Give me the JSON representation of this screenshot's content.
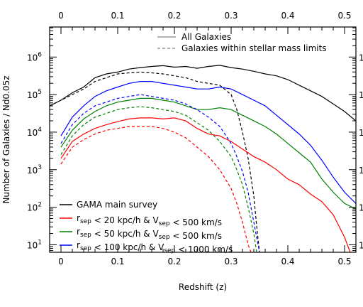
{
  "chart_data": {
    "type": "line",
    "title": "",
    "xlabel": "Redshift (z)",
    "ylabel": "Number of Galaxies / Nd0.05z",
    "xlim": [
      -0.02,
      0.52
    ],
    "ylim_log10": [
      0.8,
      6.8
    ],
    "y_scale": "log",
    "x_ticks": [
      {
        "v": 0,
        "label": "0"
      },
      {
        "v": 0.1,
        "label": "0.1"
      },
      {
        "v": 0.2,
        "label": "0.2"
      },
      {
        "v": 0.3,
        "label": "0.3"
      },
      {
        "v": 0.4,
        "label": "0.4"
      },
      {
        "v": 0.5,
        "label": "0.5"
      }
    ],
    "y_ticks": [
      {
        "exp": 1,
        "label_base": "10",
        "label_exp": "1"
      },
      {
        "exp": 2,
        "label_base": "10",
        "label_exp": "2"
      },
      {
        "exp": 3,
        "label_base": "10",
        "label_exp": "3"
      },
      {
        "exp": 4,
        "label_base": "10",
        "label_exp": "4"
      },
      {
        "exp": 5,
        "label_base": "10",
        "label_exp": "5"
      },
      {
        "exp": 6,
        "label_base": "10",
        "label_exp": "6"
      }
    ],
    "style_legend": [
      {
        "label": "All Galaxies",
        "dash": "solid"
      },
      {
        "label": "Galaxies within stellar mass limits",
        "dash": "dashed"
      }
    ],
    "series": [
      {
        "name": "GAMA main survey",
        "legend_parts": [
          {
            "t": "GAMA main survey"
          }
        ],
        "color": "#000000",
        "style": "solid",
        "x": [
          -0.02,
          0.0,
          0.02,
          0.04,
          0.06,
          0.08,
          0.1,
          0.12,
          0.14,
          0.16,
          0.18,
          0.2,
          0.22,
          0.24,
          0.26,
          0.28,
          0.3,
          0.32,
          0.34,
          0.36,
          0.38,
          0.4,
          0.42,
          0.44,
          0.46,
          0.48,
          0.5,
          0.52
        ],
        "log10_y": [
          4.7,
          4.85,
          5.05,
          5.2,
          5.45,
          5.55,
          5.6,
          5.68,
          5.72,
          5.75,
          5.77,
          5.73,
          5.75,
          5.7,
          5.75,
          5.78,
          5.72,
          5.68,
          5.62,
          5.55,
          5.5,
          5.4,
          5.25,
          5.1,
          4.95,
          4.75,
          4.55,
          4.3
        ]
      },
      {
        "name": "GAMA main survey",
        "legend_parts": [],
        "color": "#000000",
        "style": "dashed",
        "x": [
          -0.02,
          0.0,
          0.02,
          0.04,
          0.06,
          0.08,
          0.1,
          0.12,
          0.14,
          0.16,
          0.18,
          0.2,
          0.22,
          0.24,
          0.26,
          0.28,
          0.3,
          0.31,
          0.32,
          0.33,
          0.34,
          0.345,
          0.35
        ],
        "log10_y": [
          4.7,
          4.85,
          5.0,
          5.15,
          5.35,
          5.45,
          5.55,
          5.58,
          5.6,
          5.58,
          5.55,
          5.5,
          5.45,
          5.35,
          5.3,
          5.25,
          5.0,
          4.6,
          4.0,
          3.3,
          2.3,
          1.5,
          0.8
        ]
      },
      {
        "name": "r_sep < 20 kpc/h & V_sep < 500 km/s",
        "legend_parts": [
          {
            "t": "r"
          },
          {
            "t": "sep",
            "sub": true
          },
          {
            "t": " < 20 kpc/h & V"
          },
          {
            "t": "sep",
            "sub": true
          },
          {
            "t": " < 500 km/s"
          }
        ],
        "color": "#ff0000",
        "style": "solid",
        "x": [
          0.0,
          0.02,
          0.04,
          0.06,
          0.08,
          0.1,
          0.12,
          0.14,
          0.16,
          0.18,
          0.2,
          0.22,
          0.24,
          0.26,
          0.28,
          0.3,
          0.32,
          0.34,
          0.36,
          0.38,
          0.4,
          0.42,
          0.44,
          0.46,
          0.48,
          0.5,
          0.51
        ],
        "log10_y": [
          3.3,
          3.75,
          3.95,
          4.1,
          4.2,
          4.28,
          4.35,
          4.38,
          4.38,
          4.35,
          4.38,
          4.3,
          4.1,
          3.95,
          3.9,
          3.75,
          3.55,
          3.35,
          3.2,
          3.0,
          2.75,
          2.6,
          2.35,
          2.15,
          1.8,
          1.2,
          0.8
        ]
      },
      {
        "name": "r_sep < 20 kpc/h & V_sep < 500 km/s",
        "legend_parts": [],
        "color": "#ff0000",
        "style": "dashed",
        "x": [
          0.0,
          0.02,
          0.04,
          0.06,
          0.08,
          0.1,
          0.12,
          0.14,
          0.16,
          0.18,
          0.2,
          0.22,
          0.24,
          0.26,
          0.28,
          0.3,
          0.31,
          0.32,
          0.33,
          0.335
        ],
        "log10_y": [
          3.15,
          3.6,
          3.8,
          3.95,
          4.05,
          4.1,
          4.15,
          4.15,
          4.15,
          4.1,
          4.0,
          3.85,
          3.6,
          3.35,
          3.0,
          2.5,
          2.1,
          1.6,
          1.0,
          0.8
        ]
      },
      {
        "name": "r_sep < 50 kpc/h & V_sep < 500 km/s",
        "legend_parts": [
          {
            "t": "r"
          },
          {
            "t": "sep",
            "sub": true
          },
          {
            "t": " < 50 kpc/h & V"
          },
          {
            "t": "sep",
            "sub": true
          },
          {
            "t": " < 500 km/s"
          }
        ],
        "color": "#008000",
        "style": "solid",
        "x": [
          0.0,
          0.02,
          0.04,
          0.06,
          0.08,
          0.1,
          0.12,
          0.14,
          0.16,
          0.18,
          0.2,
          0.22,
          0.24,
          0.26,
          0.28,
          0.3,
          0.32,
          0.34,
          0.36,
          0.38,
          0.4,
          0.42,
          0.44,
          0.46,
          0.48,
          0.5,
          0.52
        ],
        "log10_y": [
          3.6,
          4.05,
          4.35,
          4.55,
          4.7,
          4.8,
          4.85,
          4.9,
          4.9,
          4.85,
          4.8,
          4.7,
          4.6,
          4.6,
          4.65,
          4.6,
          4.45,
          4.3,
          4.15,
          3.95,
          3.7,
          3.45,
          3.2,
          2.75,
          2.4,
          2.1,
          1.95
        ]
      },
      {
        "name": "r_sep < 50 kpc/h & V_sep < 500 km/s",
        "legend_parts": [],
        "color": "#008000",
        "style": "dashed",
        "x": [
          0.0,
          0.02,
          0.04,
          0.06,
          0.08,
          0.1,
          0.12,
          0.14,
          0.16,
          0.18,
          0.2,
          0.22,
          0.24,
          0.26,
          0.28,
          0.3,
          0.31,
          0.32,
          0.33,
          0.34,
          0.345
        ],
        "log10_y": [
          3.4,
          3.9,
          4.2,
          4.4,
          4.5,
          4.6,
          4.65,
          4.68,
          4.65,
          4.6,
          4.55,
          4.45,
          4.25,
          4.05,
          3.75,
          3.35,
          3.0,
          2.6,
          2.0,
          1.3,
          0.8
        ]
      },
      {
        "name": "r_sep < 100 kpc/h & V_sep < 1000 km/s",
        "legend_parts": [
          {
            "t": "r"
          },
          {
            "t": "sep",
            "sub": true
          },
          {
            "t": " < 100 kpc/h & V"
          },
          {
            "t": "sep",
            "sub": true
          },
          {
            "t": " < 1000 km/s"
          }
        ],
        "color": "#0000ff",
        "style": "solid",
        "x": [
          0.0,
          0.02,
          0.04,
          0.06,
          0.08,
          0.1,
          0.12,
          0.14,
          0.16,
          0.18,
          0.2,
          0.22,
          0.24,
          0.26,
          0.28,
          0.3,
          0.32,
          0.34,
          0.36,
          0.38,
          0.4,
          0.42,
          0.44,
          0.46,
          0.48,
          0.5,
          0.52
        ],
        "log10_y": [
          3.9,
          4.4,
          4.7,
          4.95,
          5.1,
          5.2,
          5.3,
          5.35,
          5.35,
          5.3,
          5.25,
          5.2,
          5.15,
          5.15,
          5.2,
          5.15,
          5.0,
          4.85,
          4.7,
          4.45,
          4.2,
          3.95,
          3.65,
          3.25,
          2.8,
          2.4,
          2.1
        ]
      },
      {
        "name": "r_sep < 100 kpc/h & V_sep < 1000 km/s",
        "legend_parts": [],
        "color": "#0000ff",
        "style": "dashed",
        "x": [
          0.0,
          0.02,
          0.04,
          0.06,
          0.08,
          0.1,
          0.12,
          0.14,
          0.16,
          0.18,
          0.2,
          0.22,
          0.24,
          0.26,
          0.28,
          0.3,
          0.31,
          0.32,
          0.33,
          0.34,
          0.35
        ],
        "log10_y": [
          3.7,
          4.2,
          4.5,
          4.7,
          4.8,
          4.9,
          4.95,
          5.0,
          4.95,
          4.9,
          4.85,
          4.75,
          4.6,
          4.4,
          4.15,
          3.7,
          3.35,
          2.95,
          2.4,
          1.6,
          0.8
        ]
      }
    ]
  }
}
